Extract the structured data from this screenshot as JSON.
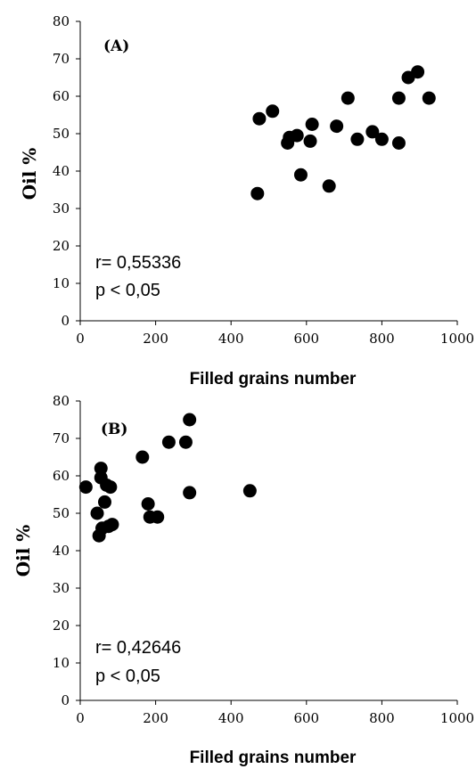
{
  "chart_data": [
    {
      "type": "scatter",
      "panel_label": "(A)",
      "xlabel": "Filled grains number",
      "ylabel": "Oil %",
      "xlim": [
        0,
        1000
      ],
      "ylim": [
        0,
        80
      ],
      "xticks": [
        0,
        200,
        400,
        600,
        800,
        1000
      ],
      "yticks": [
        0,
        10,
        20,
        30,
        40,
        50,
        60,
        70,
        80
      ],
      "grid": false,
      "annotations": [
        "r= 0,55336",
        "p < 0,05"
      ],
      "points": [
        {
          "x": 470,
          "y": 34
        },
        {
          "x": 475,
          "y": 54
        },
        {
          "x": 510,
          "y": 56
        },
        {
          "x": 550,
          "y": 47.5
        },
        {
          "x": 555,
          "y": 49
        },
        {
          "x": 575,
          "y": 49.5
        },
        {
          "x": 585,
          "y": 39
        },
        {
          "x": 610,
          "y": 48
        },
        {
          "x": 615,
          "y": 52.5
        },
        {
          "x": 660,
          "y": 36
        },
        {
          "x": 680,
          "y": 52
        },
        {
          "x": 710,
          "y": 59.5
        },
        {
          "x": 735,
          "y": 48.5
        },
        {
          "x": 775,
          "y": 50.5
        },
        {
          "x": 800,
          "y": 48.5
        },
        {
          "x": 845,
          "y": 47.5
        },
        {
          "x": 845,
          "y": 59.5
        },
        {
          "x": 870,
          "y": 65
        },
        {
          "x": 895,
          "y": 66.5
        },
        {
          "x": 925,
          "y": 59.5
        }
      ]
    },
    {
      "type": "scatter",
      "panel_label": "(B)",
      "xlabel": "Filled grains number",
      "ylabel": "Oil %",
      "xlim": [
        0,
        1000
      ],
      "ylim": [
        0,
        80
      ],
      "xticks": [
        0,
        200,
        400,
        600,
        800,
        1000
      ],
      "yticks": [
        0,
        10,
        20,
        30,
        40,
        50,
        60,
        70,
        80
      ],
      "grid": false,
      "annotations": [
        "r= 0,42646",
        "p < 0,05"
      ],
      "points": [
        {
          "x": 15,
          "y": 57
        },
        {
          "x": 45,
          "y": 50
        },
        {
          "x": 50,
          "y": 44
        },
        {
          "x": 55,
          "y": 59.5
        },
        {
          "x": 55,
          "y": 62
        },
        {
          "x": 58,
          "y": 46
        },
        {
          "x": 65,
          "y": 53
        },
        {
          "x": 70,
          "y": 57.5
        },
        {
          "x": 75,
          "y": 46.5
        },
        {
          "x": 80,
          "y": 57
        },
        {
          "x": 85,
          "y": 47
        },
        {
          "x": 165,
          "y": 65
        },
        {
          "x": 180,
          "y": 52.5
        },
        {
          "x": 185,
          "y": 49
        },
        {
          "x": 205,
          "y": 49
        },
        {
          "x": 235,
          "y": 69
        },
        {
          "x": 280,
          "y": 69
        },
        {
          "x": 290,
          "y": 75
        },
        {
          "x": 290,
          "y": 55.5
        },
        {
          "x": 450,
          "y": 56
        }
      ]
    }
  ]
}
